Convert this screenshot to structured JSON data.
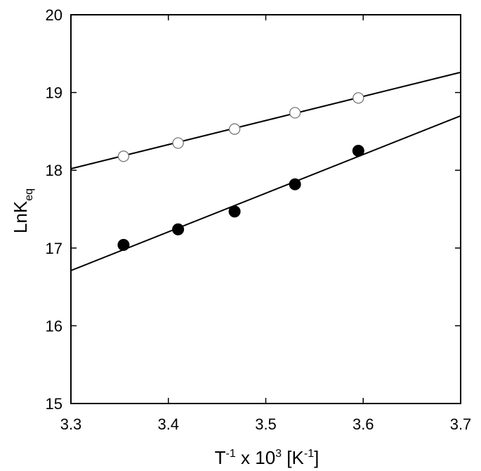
{
  "chart_data": {
    "type": "scatter",
    "title": "",
    "xlabel": {
      "base": "T",
      "base_sup": "-1",
      "mid": " x 10",
      "mid_sup": "3",
      "pre_unit": " [K",
      "unit_sup": "-1",
      "end": "]"
    },
    "ylabel": {
      "base": "LnK",
      "sub": "eq"
    },
    "xlim": [
      3.3,
      3.7
    ],
    "ylim": [
      15,
      20
    ],
    "xticks": [
      "3.3",
      "3.4",
      "3.5",
      "3.6",
      "3.7"
    ],
    "yticks": [
      "15",
      "16",
      "17",
      "18",
      "19",
      "20"
    ],
    "grid": false,
    "legend": "none",
    "series": [
      {
        "marker": "open-circle",
        "color": "#777777",
        "x": [
          3.354,
          3.41,
          3.468,
          3.53,
          3.595
        ],
        "y": [
          18.18,
          18.35,
          18.53,
          18.74,
          18.93
        ],
        "fit_line": {
          "x": [
            3.3,
            3.7
          ],
          "y": [
            18.02,
            19.26
          ]
        }
      },
      {
        "marker": "filled-circle",
        "color": "#000000",
        "x": [
          3.354,
          3.41,
          3.468,
          3.53,
          3.595
        ],
        "y": [
          17.04,
          17.24,
          17.47,
          17.82,
          18.25
        ],
        "fit_line": {
          "x": [
            3.3,
            3.7
          ],
          "y": [
            16.71,
            18.7
          ]
        }
      }
    ]
  }
}
